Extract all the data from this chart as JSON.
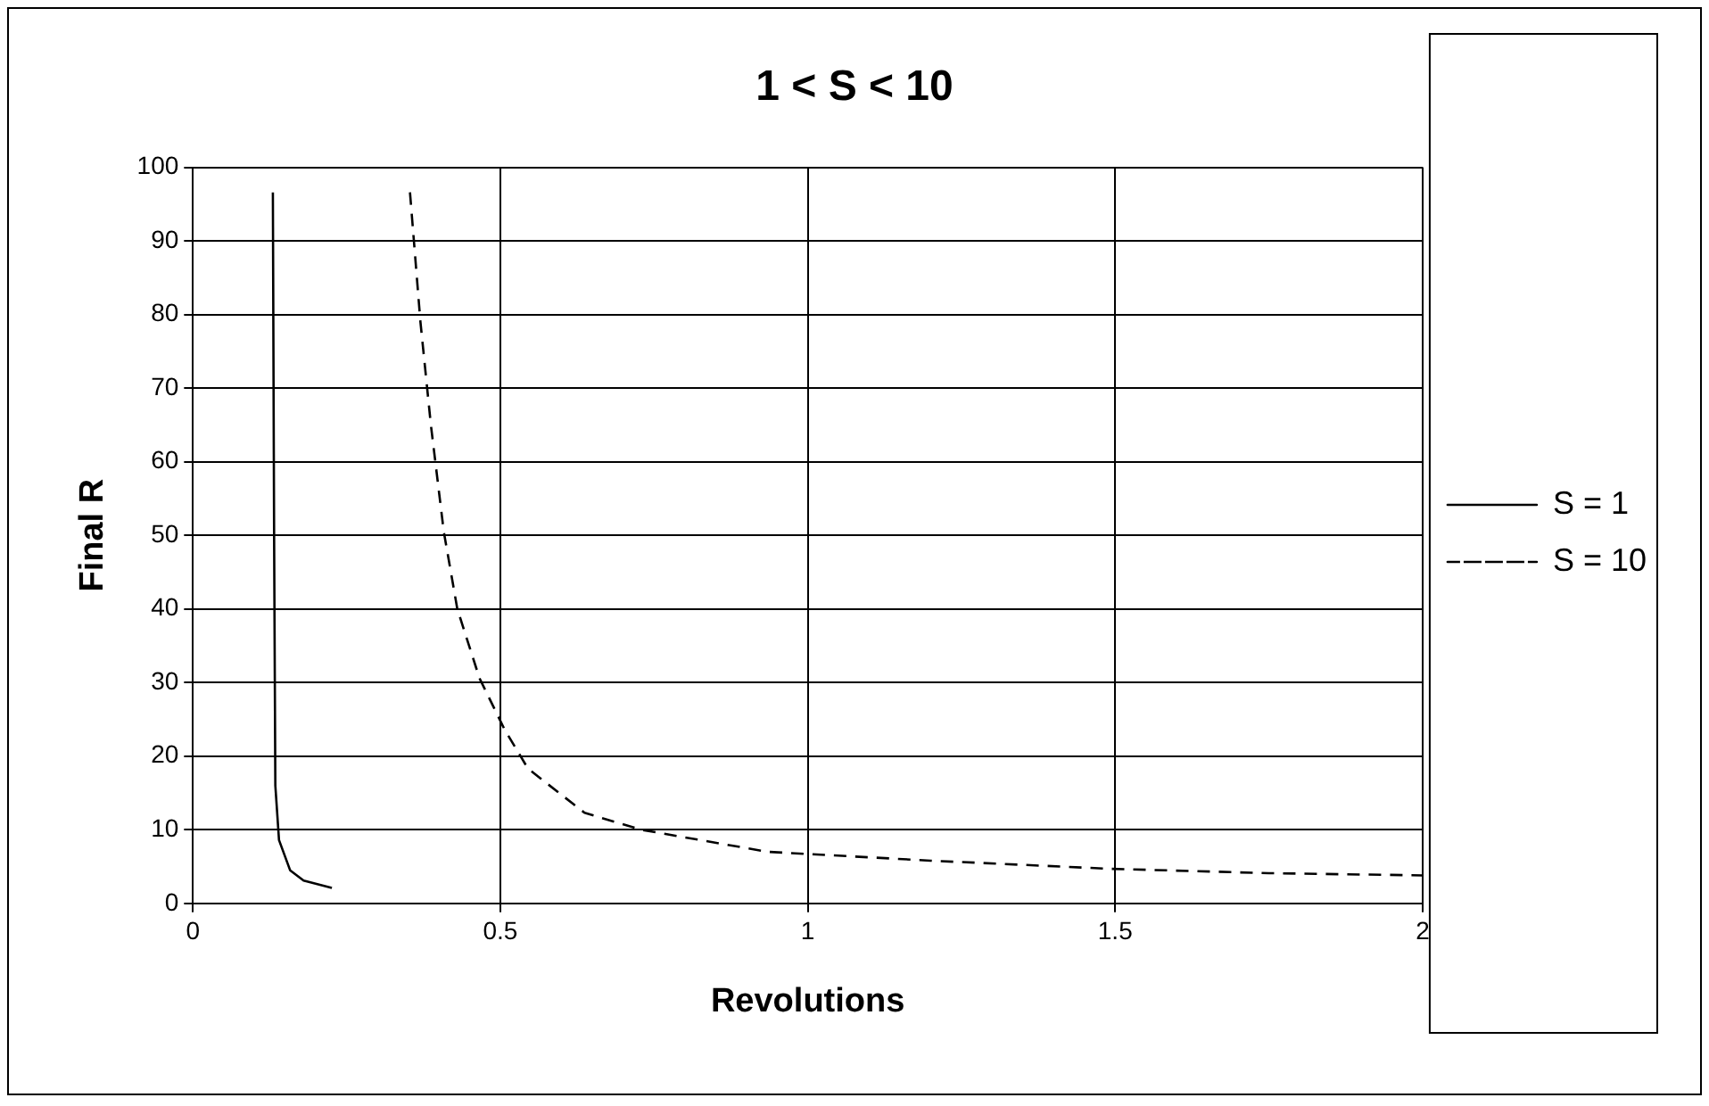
{
  "chart_data": {
    "type": "line",
    "title": "1 < S < 10",
    "xlabel": "Revolutions",
    "ylabel": "Final R",
    "xlim": [
      0,
      2
    ],
    "xticks": [
      0,
      0.5,
      1,
      1.5,
      2
    ],
    "ylim": [
      0,
      100
    ],
    "yticks": [
      0,
      10,
      20,
      30,
      40,
      50,
      60,
      70,
      80,
      90,
      100
    ],
    "grid": true,
    "legend": "right",
    "marker": "none",
    "series": [
      {
        "name": "S = 1",
        "color": "#000000",
        "line_style": "solid",
        "x": [
          0.13,
          0.132,
          0.134,
          0.14,
          0.158,
          0.18,
          0.226
        ],
        "values": [
          96.6,
          50,
          16,
          8.6,
          4.5,
          3.1,
          2.1
        ]
      },
      {
        "name": "S = 10",
        "color": "#000000",
        "line_style": "dashed",
        "x": [
          0.353,
          0.37,
          0.387,
          0.408,
          0.43,
          0.466,
          0.507,
          0.545,
          0.637,
          0.729,
          0.935,
          1.2,
          1.49,
          1.75,
          2
        ],
        "values": [
          96.6,
          79,
          65,
          50.5,
          40,
          30.6,
          23.6,
          18.3,
          12.3,
          10,
          7,
          5.8,
          4.7,
          4.1,
          3.8
        ]
      }
    ]
  }
}
